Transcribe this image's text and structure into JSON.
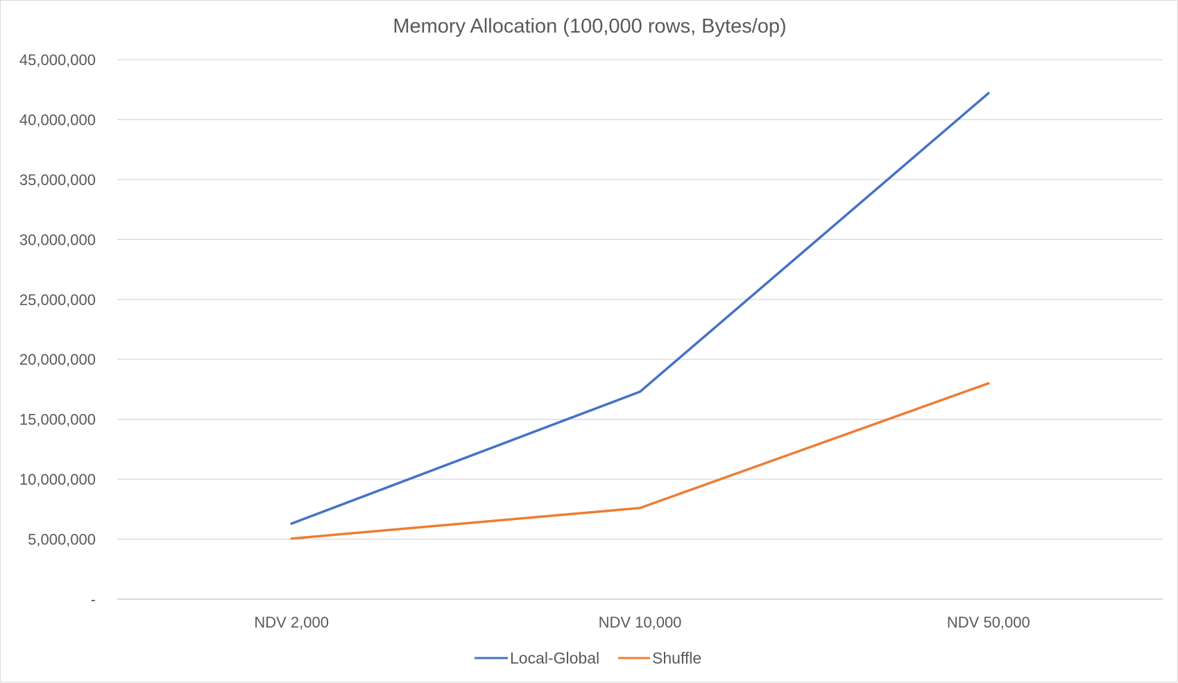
{
  "chart_data": {
    "type": "line",
    "title": "Memory Allocation (100,000 rows, Bytes/op)",
    "xlabel": "",
    "ylabel": "",
    "categories": [
      "NDV 2,000",
      "NDV 10,000",
      "NDV 50,000"
    ],
    "series": [
      {
        "name": "Local-Global",
        "color": "#4472c4",
        "values": [
          6300000,
          17300000,
          42200000
        ]
      },
      {
        "name": "Shuffle",
        "color": "#ed7d31",
        "values": [
          5050000,
          7600000,
          18000000
        ]
      }
    ],
    "ylim": [
      0,
      45000000
    ],
    "yticks": [
      0,
      5000000,
      10000000,
      15000000,
      20000000,
      25000000,
      30000000,
      35000000,
      40000000,
      45000000
    ],
    "ytick_labels": [
      "-",
      "5,000,000",
      "10,000,000",
      "15,000,000",
      "20,000,000",
      "25,000,000",
      "30,000,000",
      "35,000,000",
      "40,000,000",
      "45,000,000"
    ],
    "grid": true,
    "legend_position": "bottom"
  }
}
